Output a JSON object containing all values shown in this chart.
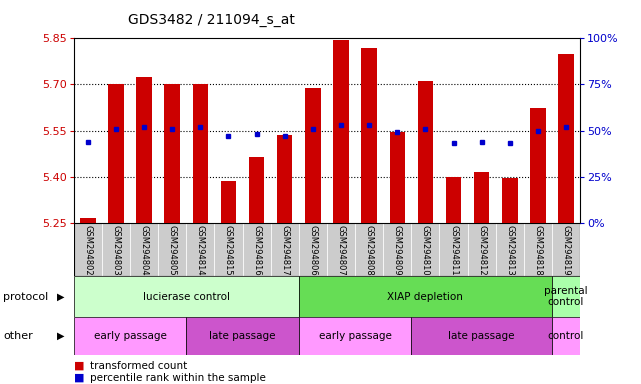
{
  "title": "GDS3482 / 211094_s_at",
  "samples": [
    "GSM294802",
    "GSM294803",
    "GSM294804",
    "GSM294805",
    "GSM294814",
    "GSM294815",
    "GSM294816",
    "GSM294817",
    "GSM294806",
    "GSM294807",
    "GSM294808",
    "GSM294809",
    "GSM294810",
    "GSM294811",
    "GSM294812",
    "GSM294813",
    "GSM294818",
    "GSM294819"
  ],
  "transformed_count": [
    5.265,
    5.7,
    5.725,
    5.7,
    5.7,
    5.385,
    5.465,
    5.535,
    5.69,
    5.845,
    5.82,
    5.545,
    5.71,
    5.4,
    5.415,
    5.395,
    5.625,
    5.8
  ],
  "percentile_rank_pct": [
    44,
    51,
    52,
    51,
    52,
    47,
    48,
    47,
    51,
    53,
    53,
    49,
    51,
    43,
    44,
    43,
    50,
    52
  ],
  "y_min": 5.25,
  "y_max": 5.85,
  "y_ticks_left": [
    5.25,
    5.4,
    5.55,
    5.7,
    5.85
  ],
  "y_ticks_right_vals": [
    0,
    25,
    50,
    75,
    100
  ],
  "y_ticks_right_pos": [
    5.25,
    5.4,
    5.55,
    5.7,
    5.85
  ],
  "bar_color": "#cc0000",
  "dot_color": "#0000cc",
  "bar_bottom": 5.25,
  "grid_lines": [
    5.4,
    5.55,
    5.7
  ],
  "sample_bg_color": "#cccccc",
  "left_tick_color": "#cc0000",
  "right_tick_color": "#0000cc",
  "proto_groups": [
    {
      "label": "lucierase control",
      "start": 0,
      "end": 8,
      "color": "#ccffcc"
    },
    {
      "label": "XIAP depletion",
      "start": 8,
      "end": 17,
      "color": "#66dd55"
    },
    {
      "label": "parental\ncontrol",
      "start": 17,
      "end": 18,
      "color": "#aaffaa"
    }
  ],
  "other_groups": [
    {
      "label": "early passage",
      "start": 0,
      "end": 4,
      "color": "#ff99ff"
    },
    {
      "label": "late passage",
      "start": 4,
      "end": 8,
      "color": "#cc55cc"
    },
    {
      "label": "early passage",
      "start": 8,
      "end": 12,
      "color": "#ff99ff"
    },
    {
      "label": "late passage",
      "start": 12,
      "end": 17,
      "color": "#cc55cc"
    },
    {
      "label": "control",
      "start": 17,
      "end": 18,
      "color": "#ff99ff"
    }
  ]
}
